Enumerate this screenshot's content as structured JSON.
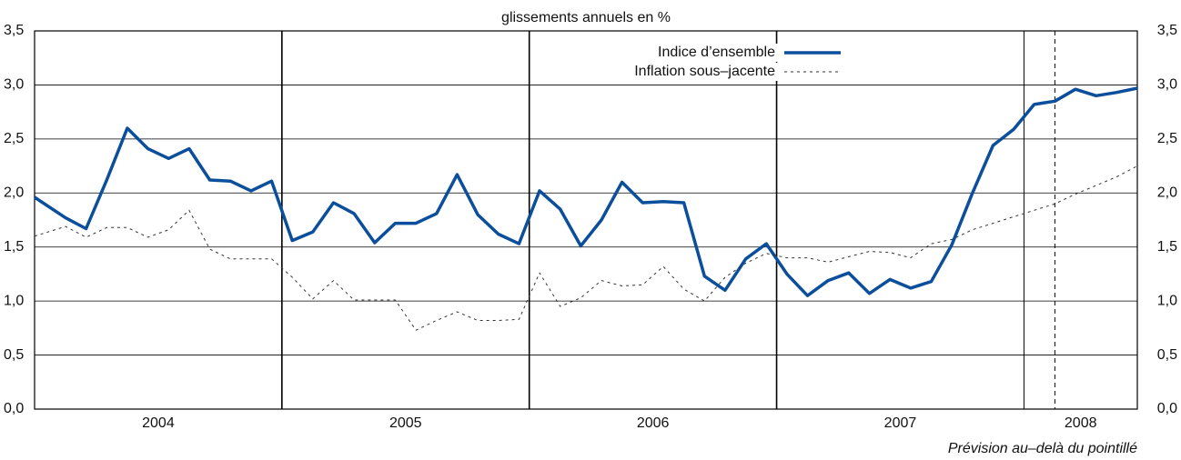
{
  "chart_data": {
    "type": "line",
    "title": "glissements annuels en %",
    "note": "Prévision au–delà du pointillé",
    "x": [
      0,
      1.5,
      2.5,
      3.5,
      4.5,
      5.5,
      6.5,
      7.5,
      8.5,
      9.5,
      10.5,
      11.5,
      12.5,
      13.5,
      14.5,
      15.5,
      16.5,
      17.5,
      18.5,
      19.5,
      20.5,
      21.5,
      22.5,
      23.5,
      24.5,
      25.5,
      26.5,
      27.5,
      28.5,
      29.5,
      30.5,
      31.5,
      32.5,
      33.5,
      34.5,
      35.5,
      36.5,
      37.5,
      38.5,
      39.5,
      40.5,
      41.5,
      42.5,
      43.5,
      44.5,
      45.5,
      46.5,
      47.5,
      48.5,
      49.5,
      50.5,
      51.5,
      52.5,
      53.5
    ],
    "series": [
      {
        "name": "Indice d’ensemble",
        "color": "#0b4f9c",
        "style": "solid",
        "values": [
          1.96,
          1.77,
          1.67,
          2.12,
          2.6,
          2.41,
          2.32,
          2.41,
          2.12,
          2.11,
          2.02,
          2.11,
          1.56,
          1.64,
          1.91,
          1.81,
          1.54,
          1.72,
          1.72,
          1.81,
          2.17,
          1.8,
          1.62,
          1.53,
          2.02,
          1.85,
          1.51,
          1.75,
          2.1,
          1.91,
          1.92,
          1.91,
          1.23,
          1.1,
          1.39,
          1.53,
          1.25,
          1.05,
          1.19,
          1.26,
          1.07,
          1.2,
          1.12,
          1.18,
          1.52,
          2.0,
          2.44,
          2.59,
          2.82,
          2.85,
          2.96,
          2.9,
          2.93,
          2.97
        ]
      },
      {
        "name": "Inflation sous–jacente",
        "color": "#333333",
        "style": "dotted",
        "values": [
          1.6,
          1.69,
          1.59,
          1.68,
          1.68,
          1.59,
          1.66,
          1.84,
          1.48,
          1.39,
          1.39,
          1.39,
          1.22,
          1.02,
          1.19,
          1.01,
          1.01,
          1.01,
          0.73,
          0.82,
          0.9,
          0.82,
          0.82,
          0.83,
          1.26,
          0.95,
          1.03,
          1.19,
          1.14,
          1.15,
          1.32,
          1.11,
          1.0,
          1.22,
          1.35,
          1.44,
          1.4,
          1.4,
          1.36,
          1.41,
          1.46,
          1.45,
          1.4,
          1.53,
          1.57,
          1.66,
          1.72,
          1.78,
          1.84,
          1.9,
          1.99,
          2.07,
          2.15,
          2.25
        ]
      }
    ],
    "xlim": [
      0,
      53.5
    ],
    "xticks": [
      {
        "value": 6,
        "label": "2004"
      },
      {
        "value": 18,
        "label": "2005"
      },
      {
        "value": 30,
        "label": "2006"
      },
      {
        "value": 42,
        "label": "2007"
      },
      {
        "value": 50.75,
        "label": "2008"
      }
    ],
    "ylim": [
      0,
      3.5
    ],
    "yticks": [
      {
        "value": 0,
        "label": "0,0"
      },
      {
        "value": 0.5,
        "label": "0,5"
      },
      {
        "value": 1,
        "label": "1,0"
      },
      {
        "value": 1.5,
        "label": "1,5"
      },
      {
        "value": 2,
        "label": "2,0"
      },
      {
        "value": 2.5,
        "label": "2,5"
      },
      {
        "value": 3,
        "label": "3,0"
      },
      {
        "value": 3.5,
        "label": "3,5"
      }
    ],
    "year_separators": [
      12,
      24,
      36,
      48
    ],
    "forecast_start": 49.5,
    "grid": true,
    "legend": "top-center"
  }
}
